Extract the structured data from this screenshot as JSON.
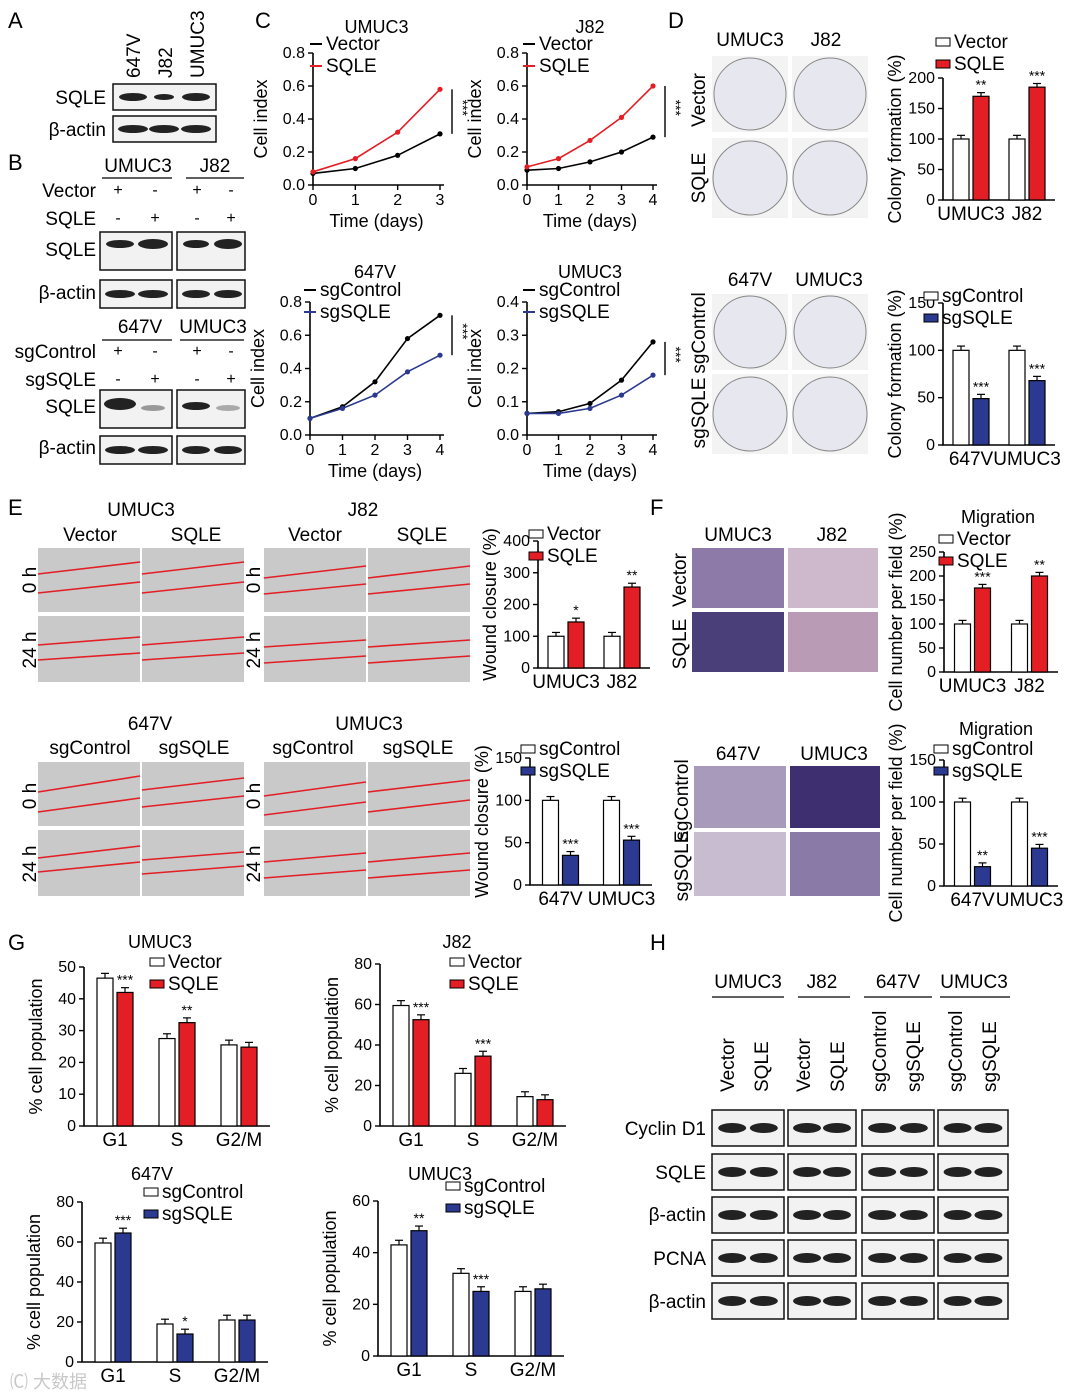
{
  "colors": {
    "vector": "#ffffff",
    "sqle": "#e31e24",
    "sgcontrol": "#ffffff",
    "sgsqle": "#2b3990",
    "line_ctrl": "#000000"
  },
  "panels": {
    "A": "A",
    "B": "B",
    "C": "C",
    "D": "D",
    "E": "E",
    "F": "F",
    "G": "G",
    "H": "H"
  },
  "panelA": {
    "cols": [
      "647V",
      "J82",
      "UMUC3"
    ],
    "rows": [
      "SQLE",
      "β-actin"
    ]
  },
  "panelB": {
    "top": {
      "groups": [
        "UMUC3",
        "J82"
      ],
      "conds": [
        "Vector",
        "SQLE"
      ],
      "signs": [
        "+",
        "-",
        "+",
        "-",
        "-",
        "+",
        "-",
        "+"
      ],
      "rows": [
        "SQLE",
        "β-actin"
      ]
    },
    "bottom": {
      "groups": [
        "647V",
        "UMUC3"
      ],
      "conds": [
        "sgControl",
        "sgSQLE"
      ],
      "signs": [
        "+",
        "-",
        "+",
        "-",
        "-",
        "+",
        "-",
        "+"
      ],
      "rows": [
        "SQLE",
        "β-actin"
      ]
    }
  },
  "panelD": {
    "top_cols": [
      "UMUC3",
      "J82"
    ],
    "top_rows": [
      "Vector",
      "SQLE"
    ],
    "bottom_cols": [
      "647V",
      "UMUC3"
    ],
    "bottom_rows": [
      "sgControl",
      "sgSQLE"
    ]
  },
  "panelE": {
    "top": {
      "groups": [
        "UMUC3",
        "J82"
      ],
      "conds": [
        "Vector",
        "SQLE",
        "Vector",
        "SQLE"
      ],
      "rows": [
        "0 h",
        "24 h"
      ]
    },
    "bottom": {
      "groups": [
        "647V",
        "UMUC3"
      ],
      "conds": [
        "sgControl",
        "sgSQLE",
        "sgControl",
        "sgSQLE"
      ],
      "rows": [
        "0 h",
        "24 h"
      ]
    }
  },
  "panelF": {
    "top_cols": [
      "UMUC3",
      "J82"
    ],
    "top_rows": [
      "Vector",
      "SQLE"
    ],
    "bottom_cols": [
      "647V",
      "UMUC3"
    ],
    "bottom_rows": [
      "sgControl",
      "sgSQLE"
    ]
  },
  "panelH": {
    "groups": [
      "UMUC3",
      "J82",
      "647V",
      "UMUC3"
    ],
    "lanes": [
      "Vector",
      "SQLE",
      "Vector",
      "SQLE",
      "sgControl",
      "sgSQLE",
      "sgControl",
      "sgSQLE"
    ],
    "rows": [
      "Cyclin D1",
      "SQLE",
      "β-actin",
      "PCNA",
      "β-actin"
    ]
  },
  "chart_data": [
    {
      "id": "C1",
      "type": "line",
      "title": "UMUC3",
      "xlabel": "Time (days)",
      "ylabel": "Cell index",
      "xlim": [
        0,
        3
      ],
      "ylim": [
        0,
        0.8
      ],
      "xticks": [
        0,
        1,
        2,
        3
      ],
      "yticks": [
        "0.0",
        "0.2",
        "0.4",
        "0.6",
        "0.8"
      ],
      "series": [
        {
          "name": "Vector",
          "x": [
            0,
            1,
            2,
            3
          ],
          "values": [
            0.07,
            0.1,
            0.18,
            0.31
          ]
        },
        {
          "name": "SQLE",
          "x": [
            0,
            1,
            2,
            3
          ],
          "values": [
            0.08,
            0.16,
            0.32,
            0.58
          ]
        }
      ],
      "annotation": "***"
    },
    {
      "id": "C2",
      "type": "line",
      "title": "J82",
      "xlabel": "Time (days)",
      "ylabel": "Cell index",
      "xlim": [
        0,
        4
      ],
      "ylim": [
        0,
        0.8
      ],
      "xticks": [
        0,
        1,
        2,
        3,
        4
      ],
      "yticks": [
        "0.0",
        "0.2",
        "0.4",
        "0.6",
        "0.8"
      ],
      "series": [
        {
          "name": "Vector",
          "x": [
            0,
            1,
            2,
            3,
            4
          ],
          "values": [
            0.09,
            0.1,
            0.14,
            0.2,
            0.29
          ]
        },
        {
          "name": "SQLE",
          "x": [
            0,
            1,
            2,
            3,
            4
          ],
          "values": [
            0.11,
            0.16,
            0.27,
            0.41,
            0.6
          ]
        }
      ],
      "annotation": "***"
    },
    {
      "id": "C3",
      "type": "line",
      "title": "647V",
      "xlabel": "Time (days)",
      "ylabel": "Cell index",
      "xlim": [
        0,
        4
      ],
      "ylim": [
        0,
        0.8
      ],
      "xticks": [
        0,
        1,
        2,
        3,
        4
      ],
      "yticks": [
        "0.0",
        "0.2",
        "0.4",
        "0.6",
        "0.8"
      ],
      "series": [
        {
          "name": "sgControl",
          "x": [
            0,
            1,
            2,
            3,
            4
          ],
          "values": [
            0.1,
            0.17,
            0.32,
            0.58,
            0.72
          ]
        },
        {
          "name": "sgSQLE",
          "x": [
            0,
            1,
            2,
            3,
            4
          ],
          "values": [
            0.1,
            0.16,
            0.24,
            0.38,
            0.48
          ]
        }
      ],
      "annotation": "***"
    },
    {
      "id": "C4",
      "type": "line",
      "title": "UMUC3",
      "xlabel": "Time (days)",
      "ylabel": "Cell index",
      "xlim": [
        0,
        4
      ],
      "ylim": [
        0,
        0.4
      ],
      "xticks": [
        0,
        1,
        2,
        3,
        4
      ],
      "yticks": [
        "0.0",
        "0.1",
        "0.2",
        "0.3",
        "0.4"
      ],
      "series": [
        {
          "name": "sgControl",
          "x": [
            0,
            1,
            2,
            3,
            4
          ],
          "values": [
            0.065,
            0.07,
            0.095,
            0.165,
            0.28
          ]
        },
        {
          "name": "sgSQLE",
          "x": [
            0,
            1,
            2,
            3,
            4
          ],
          "values": [
            0.065,
            0.065,
            0.08,
            0.12,
            0.18
          ]
        }
      ],
      "annotation": "***"
    },
    {
      "id": "D1",
      "type": "bar",
      "xlabel": "",
      "ylabel": "Colony formation (%)",
      "categories": [
        "UMUC3",
        "J82"
      ],
      "ylim": [
        0,
        200
      ],
      "yticks": [
        "0",
        "50",
        "100",
        "150",
        "200"
      ],
      "series": [
        {
          "name": "Vector",
          "values": [
            100,
            100
          ]
        },
        {
          "name": "SQLE",
          "values": [
            170,
            185
          ]
        }
      ],
      "stars": [
        "**",
        "***"
      ]
    },
    {
      "id": "D2",
      "type": "bar",
      "xlabel": "",
      "ylabel": "Colony formation (%)",
      "categories": [
        "647V",
        "UMUC3"
      ],
      "ylim": [
        0,
        150
      ],
      "yticks": [
        "0",
        "50",
        "100",
        "150"
      ],
      "series": [
        {
          "name": "sgControl",
          "values": [
            100,
            100
          ]
        },
        {
          "name": "sgSQLE",
          "values": [
            49,
            68
          ]
        }
      ],
      "stars": [
        "***",
        "***"
      ]
    },
    {
      "id": "E1",
      "type": "bar",
      "xlabel": "",
      "ylabel": "Wound closure (%)",
      "categories": [
        "UMUC3",
        "J82"
      ],
      "ylim": [
        0,
        400
      ],
      "yticks": [
        "0",
        "100",
        "200",
        "300",
        "400"
      ],
      "series": [
        {
          "name": "Vector",
          "values": [
            100,
            100
          ]
        },
        {
          "name": "SQLE",
          "values": [
            145,
            255
          ]
        }
      ],
      "stars": [
        "*",
        "**"
      ]
    },
    {
      "id": "E2",
      "type": "bar",
      "xlabel": "",
      "ylabel": "Wound closure (%)",
      "categories": [
        "647V",
        "UMUC3"
      ],
      "ylim": [
        0,
        150
      ],
      "yticks": [
        "0",
        "50",
        "100",
        "150"
      ],
      "series": [
        {
          "name": "sgControl",
          "values": [
            100,
            100
          ]
        },
        {
          "name": "sgSQLE",
          "values": [
            35,
            53
          ]
        }
      ],
      "stars": [
        "***",
        "***"
      ]
    },
    {
      "id": "F1",
      "type": "bar",
      "title": "Migration",
      "xlabel": "",
      "ylabel": "Cell number per field (%)",
      "categories": [
        "UMUC3",
        "J82"
      ],
      "ylim": [
        0,
        250
      ],
      "yticks": [
        "0",
        "50",
        "100",
        "150",
        "200",
        "250"
      ],
      "series": [
        {
          "name": "Vector",
          "values": [
            100,
            100
          ]
        },
        {
          "name": "SQLE",
          "values": [
            175,
            200
          ]
        }
      ],
      "stars": [
        "***",
        "**"
      ]
    },
    {
      "id": "F2",
      "type": "bar",
      "title": "Migration",
      "xlabel": "",
      "ylabel": "Cell number per field (%)",
      "categories": [
        "647V",
        "UMUC3"
      ],
      "ylim": [
        0,
        150
      ],
      "yticks": [
        "0",
        "50",
        "100",
        "150"
      ],
      "series": [
        {
          "name": "sgControl",
          "values": [
            100,
            100
          ]
        },
        {
          "name": "sgSQLE",
          "values": [
            23,
            45
          ]
        }
      ],
      "stars": [
        "**",
        "***"
      ]
    },
    {
      "id": "G1",
      "type": "bar",
      "title": "UMUC3",
      "xlabel": "",
      "ylabel": "% cell population",
      "categories": [
        "G1",
        "S",
        "G2/M"
      ],
      "ylim": [
        0,
        50
      ],
      "yticks": [
        "0",
        "10",
        "20",
        "30",
        "40",
        "50"
      ],
      "series": [
        {
          "name": "Vector",
          "values": [
            46.5,
            27.5,
            25.5
          ]
        },
        {
          "name": "SQLE",
          "values": [
            42,
            32.5,
            24.8
          ]
        }
      ],
      "stars": [
        "***",
        "**",
        ""
      ]
    },
    {
      "id": "G2",
      "type": "bar",
      "title": "J82",
      "xlabel": "",
      "ylabel": "% cell population",
      "categories": [
        "G1",
        "S",
        "G2/M"
      ],
      "ylim": [
        0,
        80
      ],
      "yticks": [
        "0",
        "20",
        "40",
        "60",
        "80"
      ],
      "series": [
        {
          "name": "Vector",
          "values": [
            59.5,
            26,
            14.5
          ]
        },
        {
          "name": "SQLE",
          "values": [
            52.5,
            34.5,
            13
          ]
        }
      ],
      "stars": [
        "***",
        "***",
        ""
      ]
    },
    {
      "id": "G3",
      "type": "bar",
      "title": "647V",
      "xlabel": "",
      "ylabel": "% cell population",
      "categories": [
        "G1",
        "S",
        "G2/M"
      ],
      "ylim": [
        0,
        80
      ],
      "yticks": [
        "0",
        "20",
        "40",
        "60",
        "80"
      ],
      "series": [
        {
          "name": "sgControl",
          "values": [
            59.5,
            19,
            21
          ]
        },
        {
          "name": "sgSQLE",
          "values": [
            64.5,
            14,
            21
          ]
        }
      ],
      "stars": [
        "***",
        "*",
        ""
      ]
    },
    {
      "id": "G4",
      "type": "bar",
      "title": "UMUC3",
      "xlabel": "",
      "ylabel": "% cell population",
      "categories": [
        "G1",
        "S",
        "G2/M"
      ],
      "ylim": [
        0,
        60
      ],
      "yticks": [
        "0",
        "20",
        "40",
        "60"
      ],
      "series": [
        {
          "name": "sgControl",
          "values": [
            43,
            32,
            25
          ]
        },
        {
          "name": "sgSQLE",
          "values": [
            48.5,
            25,
            26
          ]
        }
      ],
      "stars": [
        "**",
        "***",
        ""
      ]
    }
  ]
}
